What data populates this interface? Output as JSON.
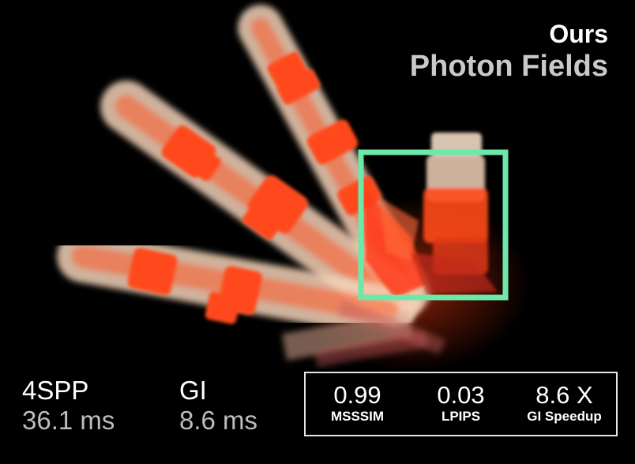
{
  "legend": {
    "ours": "Ours",
    "baseline": "Photon Fields"
  },
  "stats": [
    {
      "label": "4SPP",
      "time": "36.1 ms"
    },
    {
      "label": "GI",
      "time": "8.6 ms"
    }
  ],
  "metrics": [
    {
      "value": "0.99",
      "name": "MSSSIM"
    },
    {
      "value": "0.03",
      "name": "LPIPS"
    },
    {
      "value": "8.6 X",
      "name": "GI Speedup"
    }
  ],
  "colors": {
    "highlight": "#6ee8a8",
    "render_orange": "#ff4a1a",
    "render_cream": "#f4d6be"
  }
}
